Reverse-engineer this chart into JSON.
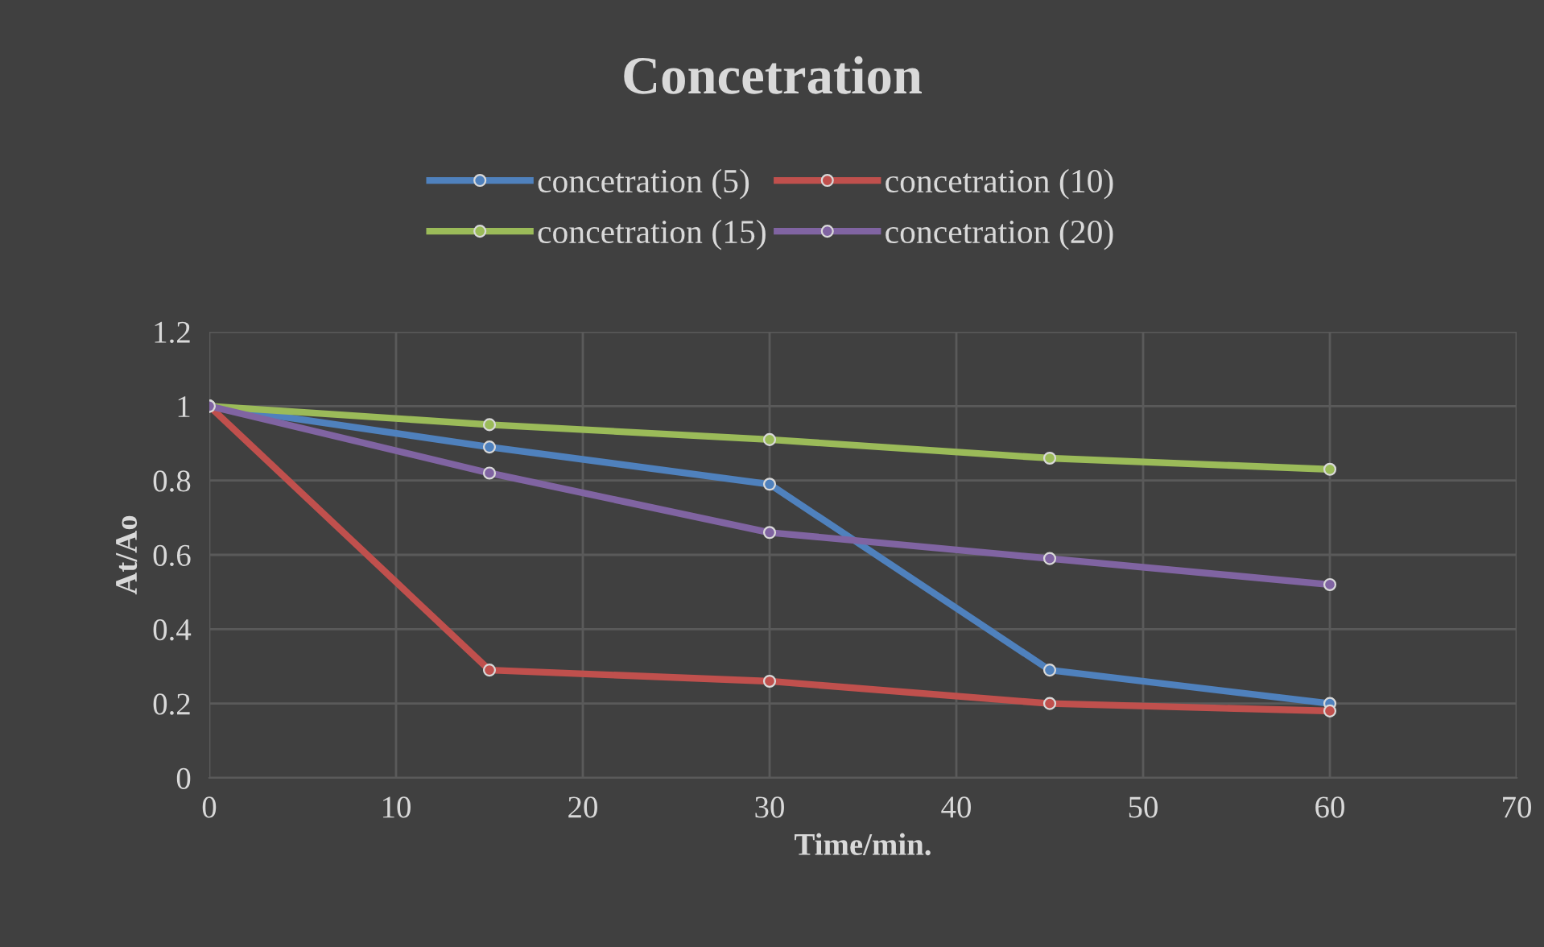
{
  "chart_data": {
    "type": "line",
    "title": "Concetration",
    "xlabel": "Time/min.",
    "ylabel": "At/Ao",
    "x": [
      0,
      15,
      30,
      45,
      60
    ],
    "series": [
      {
        "name": "concetration (5)",
        "color": "#4f81bd",
        "values": [
          1,
          0.89,
          0.79,
          0.29,
          0.2
        ]
      },
      {
        "name": "concetration (10)",
        "color": "#c0504d",
        "values": [
          1,
          0.29,
          0.26,
          0.2,
          0.18
        ]
      },
      {
        "name": "concetration (15)",
        "color": "#9bbb59",
        "values": [
          1,
          0.95,
          0.91,
          0.86,
          0.83
        ]
      },
      {
        "name": "concetration (20)",
        "color": "#8064a2",
        "values": [
          1,
          0.82,
          0.66,
          0.59,
          0.52
        ]
      }
    ],
    "xlim": [
      0,
      70
    ],
    "xticks": [
      0,
      10,
      20,
      30,
      40,
      50,
      60,
      70
    ],
    "ylim": [
      0,
      1.2
    ],
    "yticks": [
      0,
      0.2,
      0.4,
      0.6,
      0.8,
      1,
      1.2
    ],
    "grid": true,
    "legend": "top",
    "marker": "circle",
    "line_style": "solid"
  }
}
